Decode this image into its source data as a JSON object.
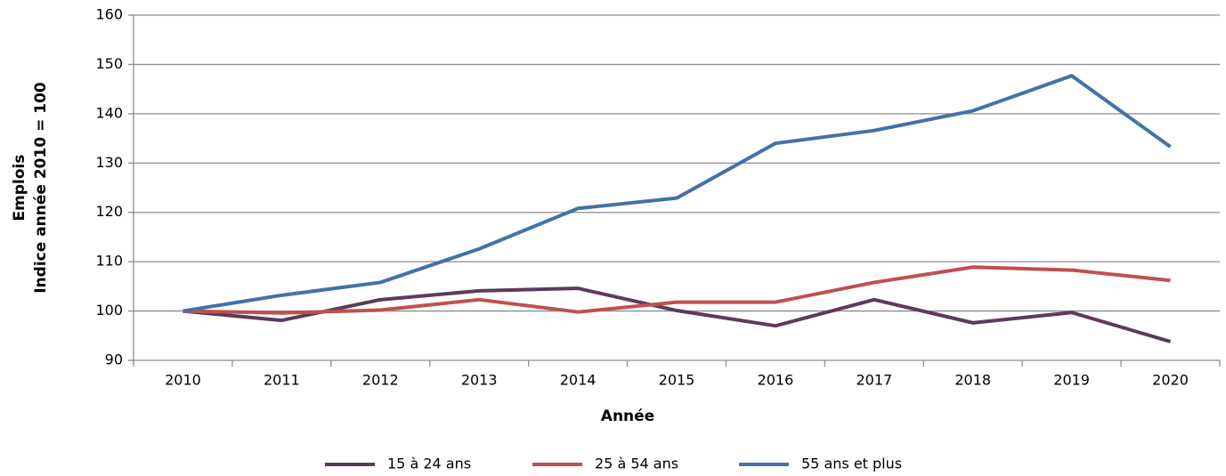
{
  "chart_data": {
    "type": "line",
    "ylabel": [
      "Emplois",
      "Indice année 2010 = 100"
    ],
    "xlabel": "Année",
    "categories": [
      "2010",
      "2011",
      "2012",
      "2013",
      "2014",
      "2015",
      "2016",
      "2017",
      "2018",
      "2019",
      "2020"
    ],
    "series": [
      {
        "name": "15 à 24 ans",
        "color": "#5e3a5c",
        "values": [
          100,
          98.1,
          102.3,
          104.1,
          104.6,
          100.1,
          97.0,
          102.3,
          97.6,
          99.7,
          93.8
        ]
      },
      {
        "name": "25 à 54 ans",
        "color": "#c0504d",
        "values": [
          100,
          99.6,
          100.2,
          102.3,
          99.8,
          101.8,
          101.8,
          105.8,
          108.9,
          108.3,
          106.2
        ]
      },
      {
        "name": "55 ans et plus",
        "color": "#4272a8",
        "values": [
          100,
          103.2,
          105.8,
          112.6,
          120.8,
          122.9,
          134.0,
          136.6,
          140.6,
          147.7,
          133.3
        ]
      }
    ],
    "ylim": [
      90,
      160
    ],
    "yticks": [
      90,
      100,
      110,
      120,
      130,
      140,
      150,
      160
    ],
    "grid": true,
    "legend": "bottom"
  }
}
